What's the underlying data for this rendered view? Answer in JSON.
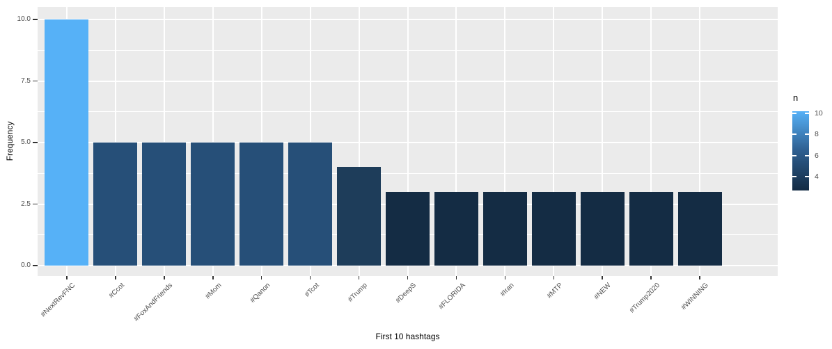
{
  "chart_data": {
    "type": "bar",
    "title": "",
    "xlabel": "First 10 hashtags",
    "ylabel": "Frequency",
    "categories": [
      "#NextRevFNC",
      "#Ccot",
      "#FoxAndFriends",
      "#Mom",
      "#Qanon",
      "#Tcot",
      "#Trump",
      "#DeepS",
      "#FLORIDA",
      "#Iran",
      "#MTP",
      "#NEW",
      "#Trump2020",
      "#WINNING"
    ],
    "values": [
      10,
      5,
      5,
      5,
      5,
      5,
      4,
      3,
      3,
      3,
      3,
      3,
      3,
      3
    ],
    "bar_colors": [
      "#56B1F7",
      "#264F78",
      "#264F78",
      "#264F78",
      "#264F78",
      "#264F78",
      "#1E3D5A",
      "#142C44",
      "#142C44",
      "#142C44",
      "#142C44",
      "#142C44",
      "#142C44",
      "#142C44"
    ],
    "ylim": [
      0,
      10
    ],
    "y_major_ticks": [
      0,
      2.5,
      5,
      7.5,
      10
    ],
    "y_tick_labels": [
      "0.0",
      "2.5",
      "5.0",
      "7.5",
      "10.0"
    ],
    "y_minor_ticks": [
      1.25,
      3.75,
      6.25,
      8.75
    ],
    "grid": true,
    "legend_position": "right",
    "legend": {
      "title": "n",
      "ticks": [
        10,
        8,
        6,
        4
      ],
      "tick_labels": [
        "10",
        "8",
        "6",
        "4"
      ],
      "range": [
        3,
        10
      ],
      "high_color": "#56B1F7",
      "mid_color": "#2E5E8F",
      "low_color": "#132B43"
    },
    "colors": {
      "panel_bg": "#EBEBEB",
      "grid": "#FFFFFF",
      "tick": "#333333",
      "tick_text": "#4D4D4D",
      "title_text": "#000000",
      "page_bg": "#FFFFFF"
    }
  }
}
